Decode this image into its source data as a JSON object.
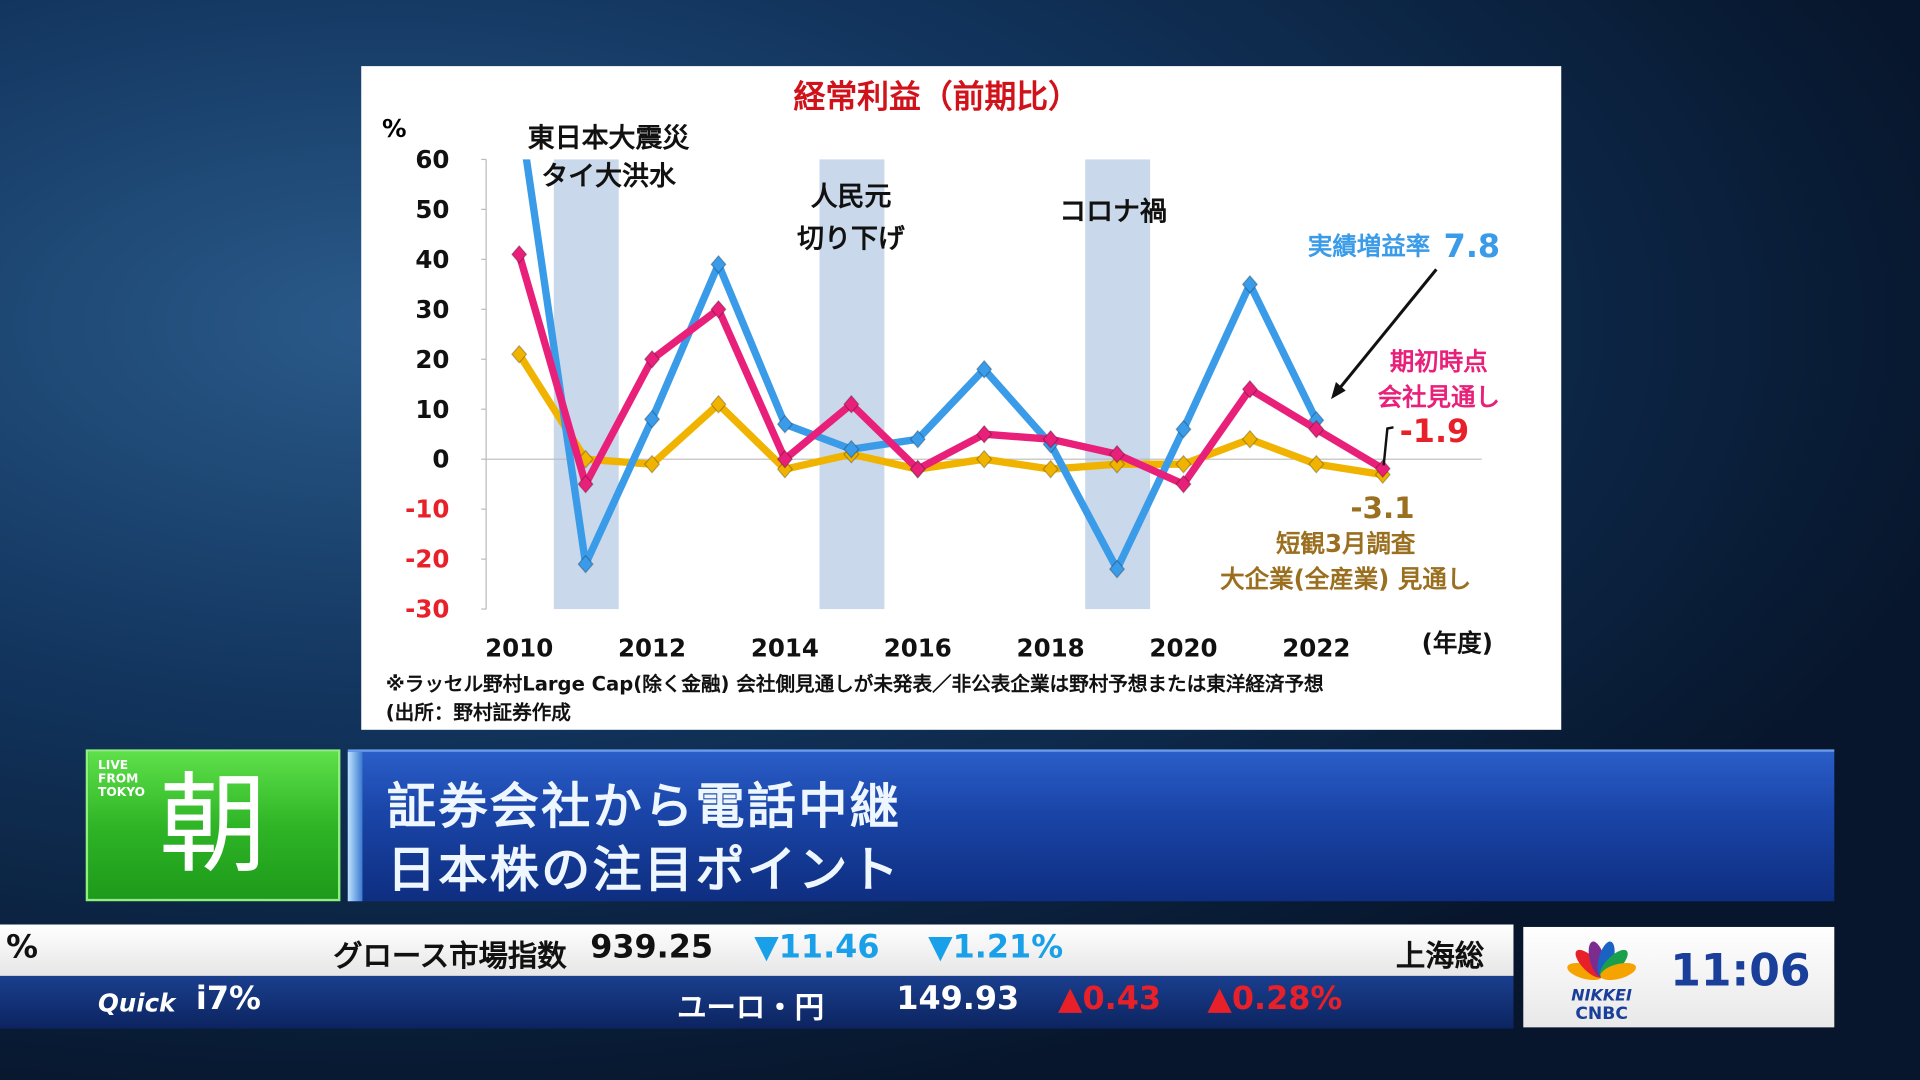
{
  "chart_data": {
    "type": "line",
    "title": "経常利益（前期比）",
    "ylabel": "%",
    "xlabel": "(年度)",
    "ylim": [
      -30,
      60
    ],
    "xlim": [
      2009.5,
      2024.5
    ],
    "yticks": [
      60,
      50,
      40,
      30,
      20,
      10,
      0,
      -10,
      -20,
      -30
    ],
    "xticks": [
      2010,
      2012,
      2014,
      2016,
      2018,
      2020,
      2022
    ],
    "negative_tick_color": "#e8202a",
    "x": [
      2010,
      2011,
      2012,
      2013,
      2014,
      2015,
      2016,
      2017,
      2018,
      2019,
      2020,
      2021,
      2022,
      2023
    ],
    "series": [
      {
        "name": "実績増益率",
        "color": "#3a9be8",
        "values": [
          70,
          -21,
          8,
          39,
          7,
          2,
          4,
          18,
          3,
          -22,
          6,
          35,
          7.8,
          null
        ]
      },
      {
        "name": "期初時点 会社見通し",
        "color": "#e8207a",
        "values": [
          41,
          -5,
          20,
          30,
          0,
          11,
          -2,
          5,
          4,
          1,
          -5,
          14,
          6,
          -1.9
        ]
      },
      {
        "name": "短観3月調査 大企業(全産業) 見通し",
        "color": "#f0b400",
        "values": [
          21,
          0,
          -1,
          11,
          -2,
          1,
          -2,
          0,
          -2,
          -1,
          -1,
          4,
          -1,
          -3.1
        ]
      }
    ],
    "shaded_periods": [
      {
        "year": 2011,
        "label": [
          "東日本大震災",
          "タイ大洪水"
        ]
      },
      {
        "year": 2015,
        "label": [
          "人民元",
          "切り下げ"
        ]
      },
      {
        "year": 2019,
        "label": [
          "コロナ禍"
        ]
      }
    ],
    "annotations": {
      "blue_label": "実績増益率",
      "blue_value": "7.8",
      "pink_label1": "期初時点",
      "pink_label2": "会社見通し",
      "pink_value": "-1.9",
      "gold_value": "-3.1",
      "gold_label1": "短観3月調査",
      "gold_label2": "大企業(全産業) 見通し"
    },
    "footnote1": "※ラッセル野村Large Cap(除く金融) 会社側見通しが未発表／非公表企業は野村予想または東洋経済予想",
    "footnote2": "(出所：野村証券作成"
  },
  "program": {
    "live": [
      "LIVE",
      "FROM",
      "TOKYO"
    ],
    "name": "朝",
    "headline1": "証券会社から電話中継",
    "headline2": "日本株の注目ポイント"
  },
  "ticker_top": {
    "pct": "%",
    "name": "グロース市場指数",
    "value": "939.25",
    "change": "▼11.46",
    "change_pct": "▼1.21%",
    "next": "上海総"
  },
  "ticker_bottom": {
    "brand": "Quick",
    "pct": "i7%",
    "name": "ユーロ・円",
    "value": "149.93",
    "change": "▲0.43",
    "change_pct": "▲0.28%"
  },
  "channel": {
    "logo_text1": "NIKKEI",
    "logo_text2": "CNBC",
    "time": "11:06"
  }
}
